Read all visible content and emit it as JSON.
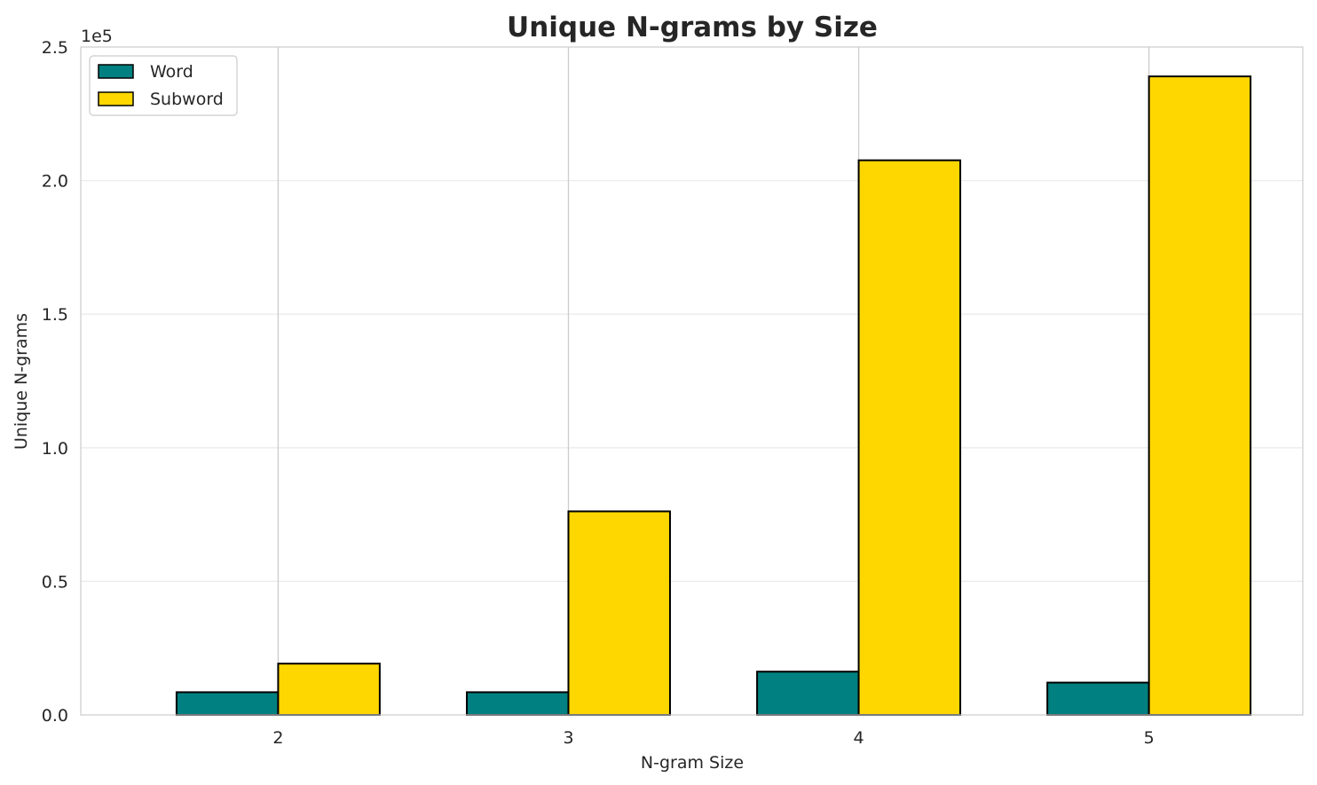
{
  "chart_data": {
    "type": "bar",
    "title": "Unique N-grams by Size",
    "xlabel": "N-gram Size",
    "ylabel": "Unique N-grams",
    "categories": [
      "2",
      "3",
      "4",
      "5"
    ],
    "series": [
      {
        "name": "Word",
        "values": [
          8500,
          8500,
          16200,
          12100
        ],
        "color": "#008080"
      },
      {
        "name": "Subword",
        "values": [
          19200,
          76200,
          207600,
          239000
        ],
        "color": "#FFD700"
      }
    ],
    "ylim": [
      0,
      250000
    ],
    "yticks": [
      0,
      50000,
      100000,
      150000,
      200000,
      250000
    ],
    "ytick_labels": [
      "0.0",
      "0.5",
      "1.0",
      "1.5",
      "2.0",
      "2.5"
    ],
    "y_offset_label": "1e5",
    "grid": true,
    "legend_position": "top-left"
  }
}
